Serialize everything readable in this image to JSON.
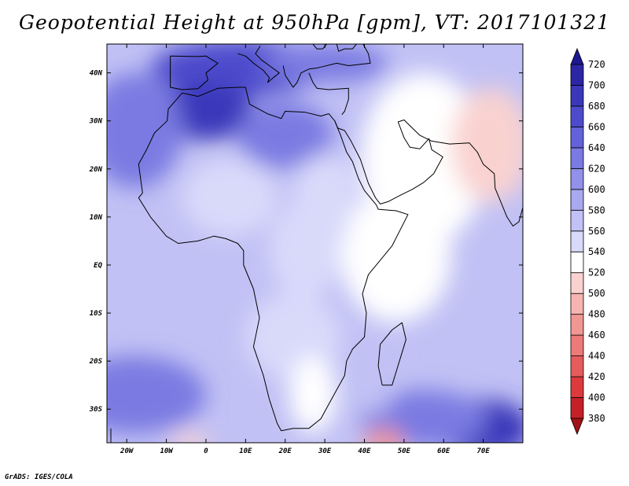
{
  "title": "Geopotential Height at 950hPa [gpm], VT: 2017101321",
  "credit": "GrADS: IGES/COLA",
  "map": {
    "lon_range": [
      -25,
      80
    ],
    "lat_range": [
      -37,
      46
    ],
    "lon_ticks": [
      {
        "value": -20,
        "label": "20W"
      },
      {
        "value": -10,
        "label": "10W"
      },
      {
        "value": 0,
        "label": "0"
      },
      {
        "value": 10,
        "label": "10E"
      },
      {
        "value": 20,
        "label": "20E"
      },
      {
        "value": 30,
        "label": "30E"
      },
      {
        "value": 40,
        "label": "40E"
      },
      {
        "value": 50,
        "label": "50E"
      },
      {
        "value": 60,
        "label": "60E"
      },
      {
        "value": 70,
        "label": "70E"
      }
    ],
    "lat_ticks": [
      {
        "value": 40,
        "label": "40N"
      },
      {
        "value": 30,
        "label": "30N"
      },
      {
        "value": 20,
        "label": "20N"
      },
      {
        "value": 10,
        "label": "10N"
      },
      {
        "value": 0,
        "label": "EQ"
      },
      {
        "value": -10,
        "label": "10S"
      },
      {
        "value": -20,
        "label": "20S"
      },
      {
        "value": -30,
        "label": "30S"
      }
    ],
    "background_value": 565,
    "blobs": [
      {
        "lon": 8,
        "lat": 41,
        "rlon": 22,
        "rlat": 6,
        "value": 660
      },
      {
        "lon": 0,
        "lat": 32,
        "rlon": 12,
        "rlat": 6,
        "value": 680
      },
      {
        "lon": 20,
        "lat": 27,
        "rlon": 12,
        "rlat": 7,
        "value": 630
      },
      {
        "lon": -18,
        "lat": 28,
        "rlon": 12,
        "rlat": 12,
        "value": 620
      },
      {
        "lon": 30,
        "lat": 42,
        "rlon": 16,
        "rlat": 4,
        "value": 620
      },
      {
        "lon": 6,
        "lat": 14,
        "rlon": 12,
        "rlat": 8,
        "value": 555
      },
      {
        "lon": 25,
        "lat": 3,
        "rlon": 9,
        "rlat": 10,
        "value": 540
      },
      {
        "lon": 30,
        "lat": 15,
        "rlon": 8,
        "rlat": 8,
        "value": 540
      },
      {
        "lon": 55,
        "lat": 22,
        "rlon": 16,
        "rlat": 18,
        "value": 520
      },
      {
        "lon": 72,
        "lat": 25,
        "rlon": 10,
        "rlat": 12,
        "value": 500
      },
      {
        "lon": 48,
        "lat": 2,
        "rlon": 14,
        "rlat": 14,
        "value": 530
      },
      {
        "lon": 22,
        "lat": -15,
        "rlon": 12,
        "rlat": 9,
        "value": 545
      },
      {
        "lon": 27,
        "lat": -27,
        "rlon": 6,
        "rlat": 8,
        "value": 525
      },
      {
        "lon": -18,
        "lat": -27,
        "rlon": 18,
        "rlat": 8,
        "value": 630
      },
      {
        "lon": 70,
        "lat": -34,
        "rlon": 12,
        "rlat": 6,
        "value": 690
      },
      {
        "lon": 55,
        "lat": -32,
        "rlon": 16,
        "rlat": 6,
        "value": 630
      },
      {
        "lon": 45,
        "lat": -37,
        "rlon": 5,
        "rlat": 3,
        "value": 470
      },
      {
        "lon": -4,
        "lat": -37,
        "rlon": 5,
        "rlat": 2,
        "value": 515
      },
      {
        "lon": 42,
        "lat": -23,
        "rlon": 6,
        "rlat": 8,
        "value": 560
      }
    ]
  },
  "colorbar": {
    "levels": [
      380,
      400,
      420,
      440,
      460,
      480,
      500,
      520,
      540,
      560,
      580,
      600,
      620,
      640,
      660,
      680,
      700,
      720
    ],
    "colors": [
      "#a01218",
      "#c42027",
      "#dc3a3d",
      "#e65c5c",
      "#ec7a77",
      "#f19793",
      "#f5b4b0",
      "#f9d2d0",
      "#ffffff",
      "#d9dafa",
      "#c1c1f5",
      "#a9a9f0",
      "#9191ea",
      "#7a7ae2",
      "#6362d9",
      "#4d4bcc",
      "#3a37ba",
      "#2a26a4",
      "#1c1890"
    ]
  },
  "colors": {
    "coastline": "#000000",
    "frame": "#000000"
  }
}
